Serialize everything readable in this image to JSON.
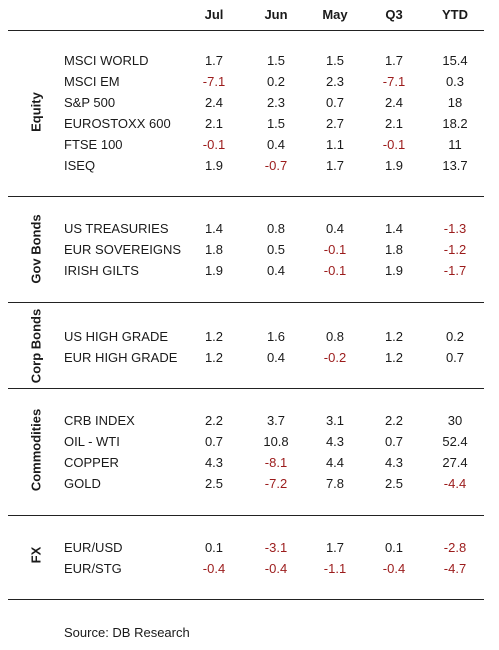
{
  "columns": [
    "Jul",
    "Jun",
    "May",
    "Q3",
    "YTD"
  ],
  "sections": [
    {
      "label": "Equity",
      "rows": [
        {
          "name": "MSCI WORLD",
          "values": [
            "1.7",
            "1.5",
            "1.5",
            "1.7",
            "15.4"
          ]
        },
        {
          "name": "MSCI EM",
          "values": [
            "-7.1",
            "0.2",
            "2.3",
            "-7.1",
            "0.3"
          ]
        },
        {
          "name": "S&P 500",
          "values": [
            "2.4",
            "2.3",
            "0.7",
            "2.4",
            "18"
          ]
        },
        {
          "name": "EUROSTOXX 600",
          "values": [
            "2.1",
            "1.5",
            "2.7",
            "2.1",
            "18.2"
          ]
        },
        {
          "name": "FTSE 100",
          "values": [
            "-0.1",
            "0.4",
            "1.1",
            "-0.1",
            "11"
          ]
        },
        {
          "name": "ISEQ",
          "values": [
            "1.9",
            "-0.7",
            "1.7",
            "1.9",
            "13.7"
          ]
        }
      ]
    },
    {
      "label": "Gov Bonds",
      "rows": [
        {
          "name": "US TREASURIES",
          "values": [
            "1.4",
            "0.8",
            "0.4",
            "1.4",
            "-1.3"
          ]
        },
        {
          "name": "EUR SOVEREIGNS",
          "values": [
            "1.8",
            "0.5",
            "-0.1",
            "1.8",
            "-1.2"
          ]
        },
        {
          "name": "IRISH GILTS",
          "values": [
            "1.9",
            "0.4",
            "-0.1",
            "1.9",
            "-1.7"
          ]
        }
      ]
    },
    {
      "label": "Corp Bonds",
      "rows": [
        {
          "name": "US HIGH GRADE",
          "values": [
            "1.2",
            "1.6",
            "0.8",
            "1.2",
            "0.2"
          ]
        },
        {
          "name": "EUR HIGH GRADE",
          "values": [
            "1.2",
            "0.4",
            "-0.2",
            "1.2",
            "0.7"
          ]
        }
      ]
    },
    {
      "label": "Commodities",
      "rows": [
        {
          "name": "CRB INDEX",
          "values": [
            "2.2",
            "3.7",
            "3.1",
            "2.2",
            "30"
          ]
        },
        {
          "name": "OIL - WTI",
          "values": [
            "0.7",
            "10.8",
            "4.3",
            "0.7",
            "52.4"
          ]
        },
        {
          "name": "COPPER",
          "values": [
            "4.3",
            "-8.1",
            "4.4",
            "4.3",
            "27.4"
          ]
        },
        {
          "name": "GOLD",
          "values": [
            "2.5",
            "-7.2",
            "7.8",
            "2.5",
            "-4.4"
          ]
        }
      ]
    },
    {
      "label": "FX",
      "rows": [
        {
          "name": "EUR/USD",
          "values": [
            "0.1",
            "-3.1",
            "1.7",
            "0.1",
            "-2.8"
          ]
        },
        {
          "name": "EUR/STG",
          "values": [
            "-0.4",
            "-0.4",
            "-1.1",
            "-0.4",
            "-4.7"
          ]
        }
      ]
    }
  ],
  "source": "Source: DB Research",
  "colors": {
    "negative": "#9b1b1b",
    "text": "#1a1a1a",
    "rule": "#222222"
  }
}
